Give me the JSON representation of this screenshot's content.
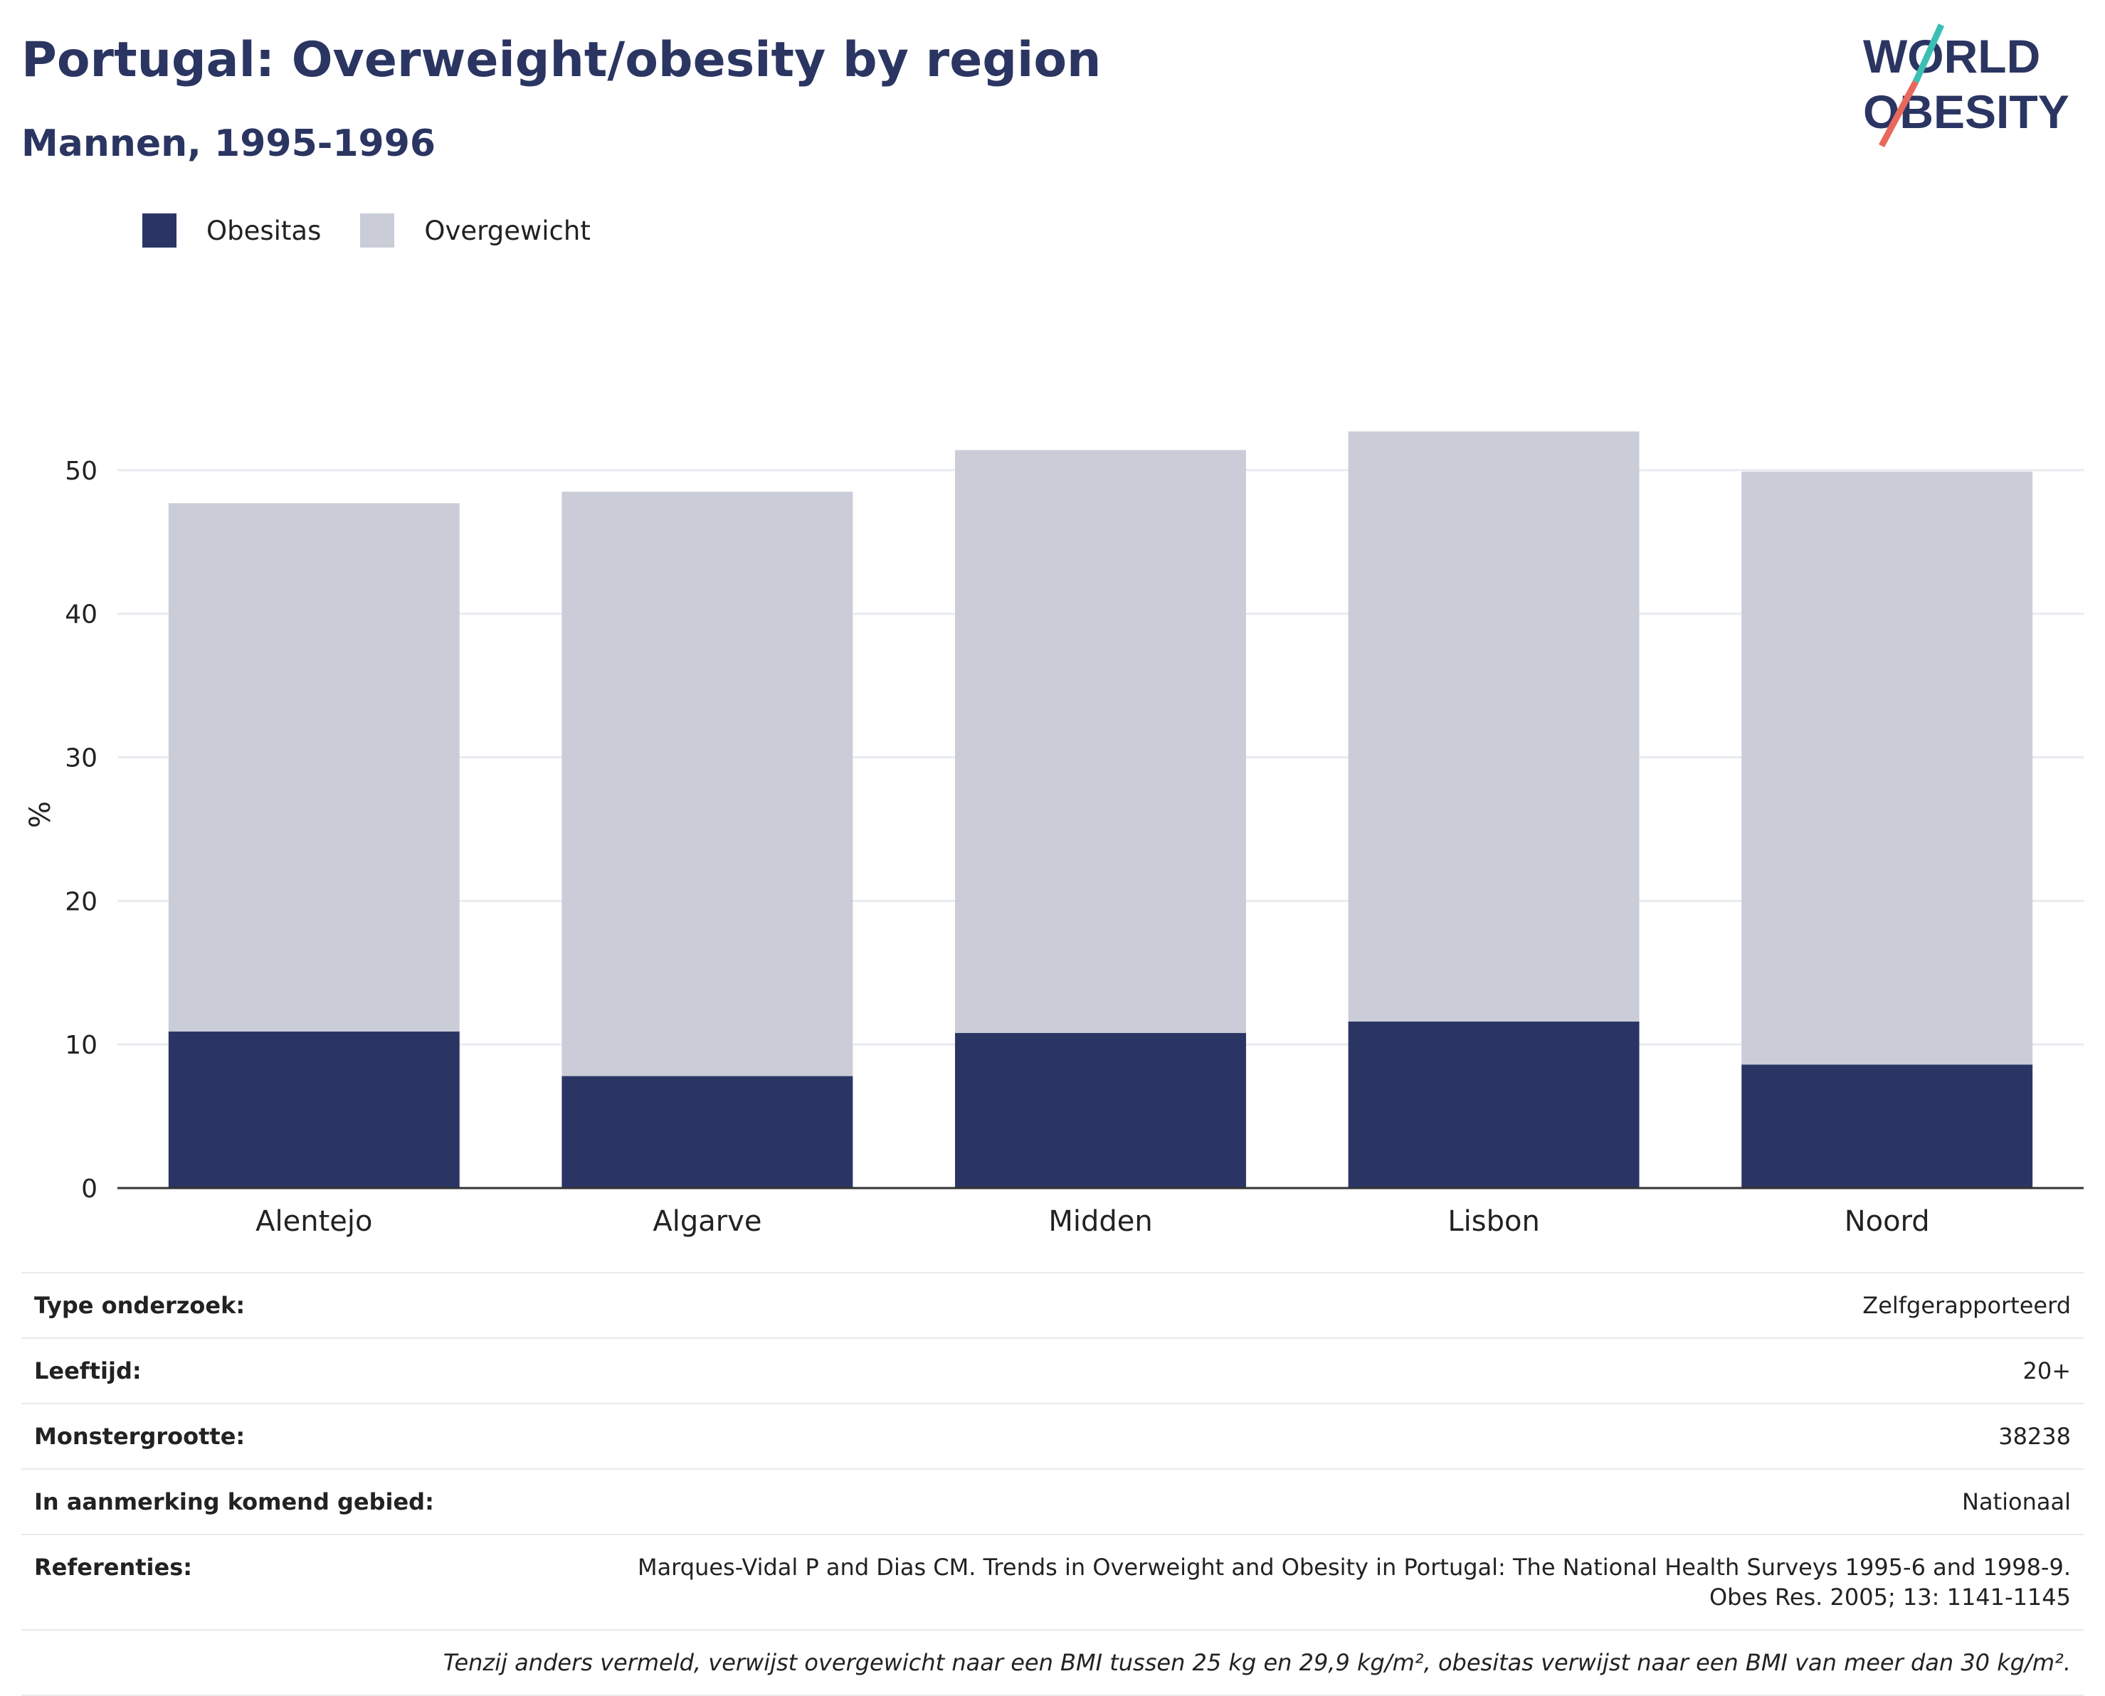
{
  "header": {
    "title": "Portugal: Overweight/obesity by region",
    "subtitle": "Mannen, 1995-1996"
  },
  "logo": {
    "line1": "WORLD",
    "line2": "OBESITY"
  },
  "colors": {
    "obesity": "#2b3564",
    "overweight": "#cacdd8",
    "text_dark": "#2b3562",
    "logo_teal": "#3bbfb5",
    "logo_red": "#e8685c"
  },
  "chart_data": {
    "type": "bar",
    "stacked": true,
    "categories": [
      "Alentejo",
      "Algarve",
      "Midden",
      "Lisbon",
      "Noord"
    ],
    "series": [
      {
        "name": "Obesitas",
        "values": [
          10.9,
          7.8,
          10.8,
          11.6,
          8.6
        ]
      },
      {
        "name": "Overgewicht",
        "values": [
          36.8,
          40.7,
          40.6,
          41.1,
          41.3
        ]
      }
    ],
    "ylabel": "%",
    "ylim": [
      0,
      55
    ],
    "yticks": [
      0,
      10,
      20,
      30,
      40,
      50
    ],
    "grid": true,
    "legend": "top-left"
  },
  "info": {
    "rows": [
      {
        "label": "Type onderzoek:",
        "value": "Zelfgerapporteerd"
      },
      {
        "label": "Leeftijd:",
        "value": "20+"
      },
      {
        "label": "Monstergrootte:",
        "value": "38238"
      },
      {
        "label": "In aanmerking komend gebied:",
        "value": "Nationaal"
      },
      {
        "label": "Referenties:",
        "value": "Marques-Vidal P and Dias CM. Trends in Overweight and Obesity in Portugal: The National Health Surveys 1995-6 and 1998-9. Obes Res. 2005; 13: 1141-1145"
      }
    ],
    "footnote": "Tenzij anders vermeld, verwijst overgewicht naar een BMI tussen 25 kg en 29,9 kg/m², obesitas verwijst naar een BMI van meer dan 30 kg/m²."
  }
}
